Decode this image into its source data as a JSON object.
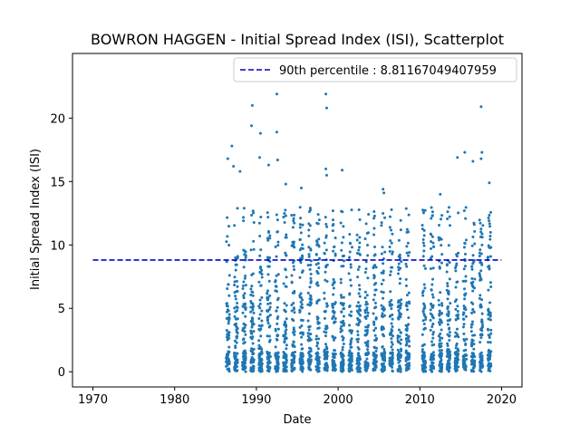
{
  "chart_data": {
    "type": "scatter",
    "title": "BOWRON HAGGEN - Initial Spread Index (ISI), Scatterplot",
    "xlabel": "Date",
    "ylabel": "Initial Spread Index (ISI)",
    "xlim": [
      1967.5,
      2022.5
    ],
    "ylim": [
      -1.2,
      25.1
    ],
    "x_ticks": [
      1970,
      1980,
      1990,
      2000,
      2010,
      2020
    ],
    "y_ticks": [
      0,
      5,
      10,
      15,
      20
    ],
    "x_tick_labels": [
      "1970",
      "1980",
      "1990",
      "2000",
      "2010",
      "2020"
    ],
    "y_tick_labels": [
      "0",
      "5",
      "10",
      "15",
      "20"
    ],
    "grid": false,
    "legend_position": "top-right",
    "colors": {
      "points": "#1f77b4",
      "percentile_line": "#0000cc"
    },
    "series": [
      {
        "kind": "points",
        "active_seasons": [
          1986,
          1987,
          1988,
          1989,
          1990,
          1991,
          1992,
          1993,
          1994,
          1995,
          1996,
          1997,
          1998,
          1999,
          2000,
          2001,
          2002,
          2003,
          2004,
          2005,
          2006,
          2007,
          2008,
          2010,
          2011,
          2012,
          2013,
          2014,
          2015,
          2016,
          2017,
          2018
        ],
        "season_start_fraction": 0.3,
        "season_end_fraction": 0.72,
        "notable_points": [
          {
            "x": 1986.5,
            "y": 16.8
          },
          {
            "x": 1987.0,
            "y": 17.8
          },
          {
            "x": 1987.2,
            "y": 16.2
          },
          {
            "x": 1988.0,
            "y": 15.8
          },
          {
            "x": 1989.5,
            "y": 21.0
          },
          {
            "x": 1989.4,
            "y": 19.4
          },
          {
            "x": 1990.5,
            "y": 18.8
          },
          {
            "x": 1990.4,
            "y": 16.9
          },
          {
            "x": 1991.5,
            "y": 16.3
          },
          {
            "x": 1992.5,
            "y": 21.9
          },
          {
            "x": 1992.5,
            "y": 18.9
          },
          {
            "x": 1992.6,
            "y": 16.7
          },
          {
            "x": 1993.6,
            "y": 14.8
          },
          {
            "x": 1995.5,
            "y": 14.5
          },
          {
            "x": 1998.5,
            "y": 21.9
          },
          {
            "x": 1998.6,
            "y": 20.8
          },
          {
            "x": 1998.5,
            "y": 16.0
          },
          {
            "x": 1998.6,
            "y": 15.5
          },
          {
            "x": 2000.5,
            "y": 15.9
          },
          {
            "x": 2005.5,
            "y": 14.4
          },
          {
            "x": 2005.6,
            "y": 14.1
          },
          {
            "x": 2012.5,
            "y": 14.0
          },
          {
            "x": 2014.6,
            "y": 16.9
          },
          {
            "x": 2015.5,
            "y": 17.3
          },
          {
            "x": 2016.5,
            "y": 16.6
          },
          {
            "x": 2017.5,
            "y": 20.9
          },
          {
            "x": 2017.6,
            "y": 17.3
          },
          {
            "x": 2017.5,
            "y": 16.8
          },
          {
            "x": 2018.5,
            "y": 14.9
          }
        ]
      }
    ],
    "percentile": {
      "label": "90th percentile : 8.81167049407959",
      "value": 8.81167049407959,
      "x_start": 1970,
      "x_end": 2020
    }
  }
}
